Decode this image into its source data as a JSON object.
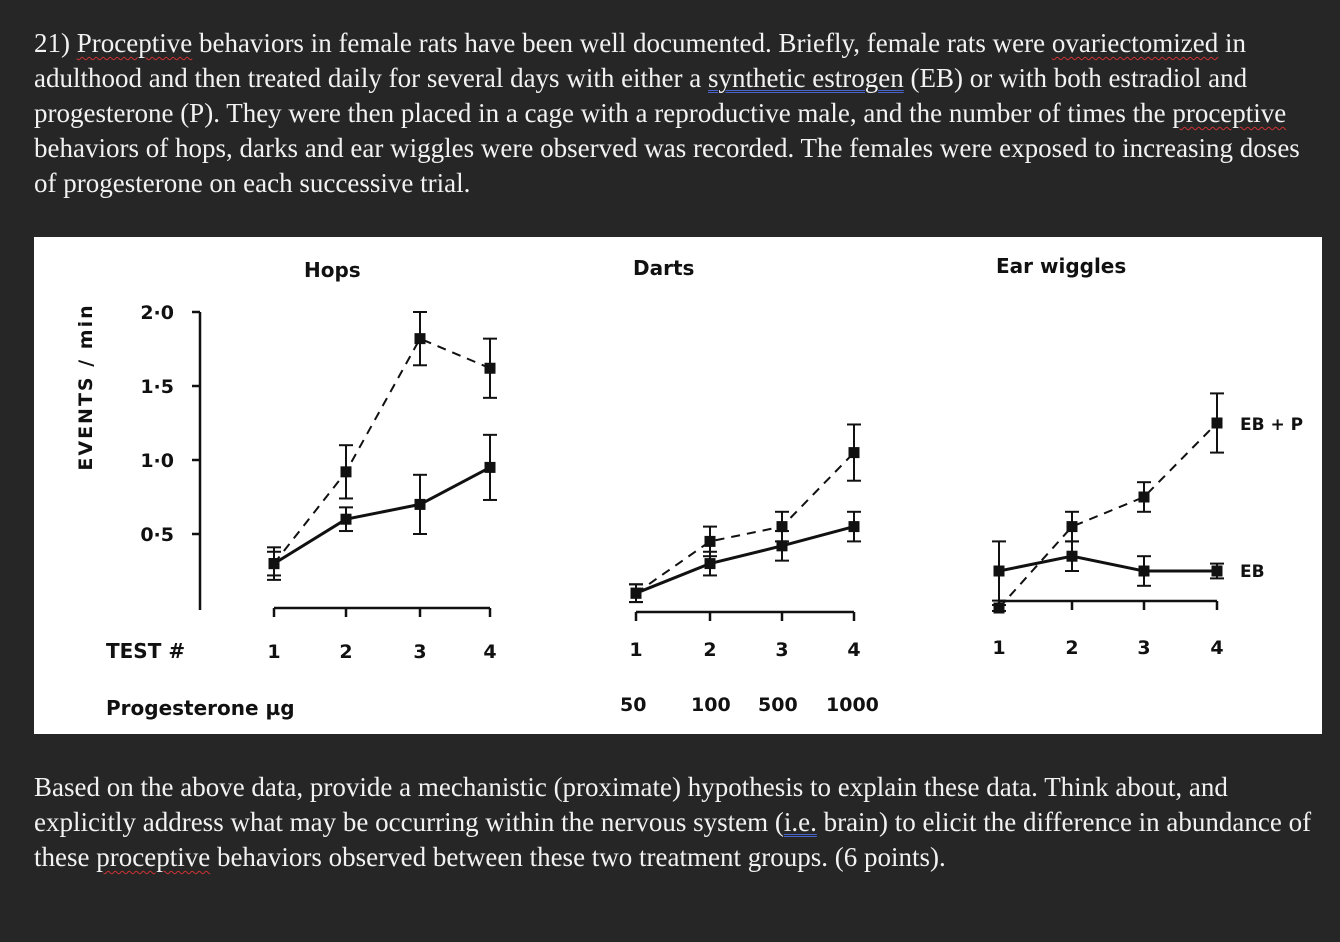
{
  "question": {
    "number": "21)",
    "word_proceptive": "Proceptive",
    "part1": "behaviors in female rats have been well documented. Briefly, female rats were",
    "word_ovariectomized": "ovariectomized",
    "part2": "in adulthood and then treated daily for several days with either a",
    "word_synthetic": "synthetic  estrogen",
    "part3": "(EB) or with both estradiol and progesterone (P). They were then placed in a cage with a reproductive male, and the number of times the",
    "word_proceptive2": "proceptive",
    "part4": "behaviors of hops, darks and ear wiggles were observed was recorded.  The females were exposed to increasing doses of progesterone on each successive trial."
  },
  "followup": {
    "part1": "Based on the above data, provide a mechanistic (proximate) hypothesis to explain these data.  Think about, and explicitly address what may be occurring within the nervous system (",
    "word_ie": "i.e.",
    "part2": " brain) to elicit the difference in abundance of these",
    "word_proceptive": "proceptive",
    "part3": "behaviors observed between these two treatment groups. (6 points)."
  },
  "chart_data": {
    "type": "line",
    "ylabel": "EVENTS / min",
    "yticks": [
      "2·0",
      "1·5",
      "1·0",
      "0·5"
    ],
    "ytick_values": [
      2.0,
      1.5,
      1.0,
      0.5
    ],
    "ylim": [
      0,
      2.0
    ],
    "row_labels": {
      "test": "TEST #",
      "dose": "Progesterone  µg"
    },
    "test_numbers": [
      "1",
      "2",
      "3",
      "4"
    ],
    "doses": [
      "50",
      "100",
      "500",
      "1000"
    ],
    "legend": {
      "eb_p": "EB + P",
      "eb": "EB"
    },
    "panels": [
      {
        "title": "Hops",
        "series": [
          {
            "name": "EB + P",
            "style": "dashed",
            "values": [
              0.3,
              0.92,
              1.82,
              1.62
            ],
            "err": [
              0.11,
              0.18,
              0.18,
              0.2
            ]
          },
          {
            "name": "EB",
            "style": "solid",
            "values": [
              0.3,
              0.6,
              0.7,
              0.95
            ],
            "err": [
              0.08,
              0.08,
              0.2,
              0.22
            ]
          }
        ]
      },
      {
        "title": "Darts",
        "series": [
          {
            "name": "EB + P",
            "style": "dashed",
            "values": [
              0.1,
              0.45,
              0.55,
              1.05
            ],
            "err": [
              0.06,
              0.1,
              0.1,
              0.19
            ]
          },
          {
            "name": "EB",
            "style": "solid",
            "values": [
              0.1,
              0.3,
              0.42,
              0.55
            ],
            "err": [
              0.06,
              0.08,
              0.1,
              0.1
            ]
          }
        ]
      },
      {
        "title": "Ear wiggles",
        "series": [
          {
            "name": "EB + P",
            "style": "dashed",
            "values": [
              0.0,
              0.55,
              0.75,
              1.25
            ],
            "err": [
              0.02,
              0.1,
              0.1,
              0.2
            ]
          },
          {
            "name": "EB",
            "style": "solid",
            "values": [
              0.25,
              0.35,
              0.25,
              0.25
            ],
            "err": [
              0.2,
              0.1,
              0.1,
              0.05
            ]
          }
        ]
      }
    ]
  }
}
